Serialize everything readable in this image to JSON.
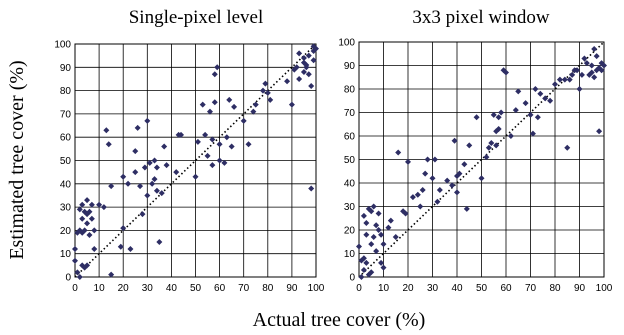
{
  "figure": {
    "ylabel": "Estimated tree cover (%)",
    "xlabel": "Actual tree cover (%)"
  },
  "chart_data": [
    {
      "type": "scatter",
      "title": "Single-pixel level",
      "xlabel": "Actual tree cover (%)",
      "ylabel": "Estimated tree cover (%)",
      "xlim": [
        0,
        100
      ],
      "ylim": [
        0,
        100
      ],
      "xticks": [
        "0",
        "10",
        "20",
        "30",
        "40",
        "50",
        "60",
        "70",
        "80",
        "90",
        "100"
      ],
      "yticks": [
        "0",
        "10",
        "20",
        "30",
        "40",
        "50",
        "60",
        "70",
        "80",
        "90",
        "100"
      ],
      "grid": true,
      "reference_line": "y = x (dotted)",
      "marker_color": "#2e2e64",
      "series": [
        {
          "x": [
            0,
            0,
            1,
            1,
            2,
            2,
            2,
            3,
            3,
            3,
            3,
            4,
            4,
            4,
            5,
            5,
            5,
            5,
            6,
            6,
            7,
            7,
            8,
            8,
            10,
            12,
            13,
            14,
            15,
            15,
            19,
            20,
            20,
            22,
            23,
            25,
            25,
            26,
            27,
            28,
            29,
            30,
            30,
            31,
            32,
            33,
            33,
            34,
            34,
            35,
            36,
            37,
            38,
            42,
            43,
            44,
            50,
            51,
            53,
            54,
            55,
            56,
            57,
            57,
            58,
            58,
            59,
            60,
            60,
            62,
            63,
            64,
            65,
            66,
            70,
            72,
            74,
            75,
            78,
            79,
            80,
            81,
            88,
            90,
            91,
            92,
            93,
            93,
            95,
            95,
            95,
            96,
            96,
            97,
            97,
            98,
            98,
            99,
            99,
            99,
            100
          ],
          "y": [
            7,
            12,
            2,
            19,
            0,
            20,
            29,
            19,
            25,
            31,
            5,
            20,
            28,
            4,
            23,
            27,
            33,
            5,
            18,
            28,
            25,
            31,
            12,
            20,
            31,
            30,
            63,
            57,
            1,
            39,
            13,
            21,
            43,
            40,
            12,
            45,
            54,
            64,
            39,
            27,
            47,
            35,
            67,
            49,
            40,
            42,
            50,
            37,
            47,
            15,
            36,
            56,
            48,
            45,
            61,
            61,
            43,
            58,
            74,
            61,
            52,
            71,
            48,
            59,
            75,
            87,
            90,
            50,
            57,
            49,
            60,
            76,
            56,
            73,
            67,
            57,
            71,
            74,
            80,
            83,
            79,
            76,
            84,
            74,
            89,
            90,
            85,
            96,
            88,
            92,
            94,
            90,
            91,
            87,
            95,
            82,
            38,
            93,
            97,
            99,
            98
          ]
        }
      ]
    },
    {
      "type": "scatter",
      "title": "3x3 pixel window",
      "xlabel": "Actual tree cover (%)",
      "ylabel": "Estimated tree cover (%)",
      "xlim": [
        0,
        100
      ],
      "ylim": [
        0,
        100
      ],
      "xticks": [
        "0",
        "10",
        "20",
        "30",
        "40",
        "50",
        "60",
        "70",
        "80",
        "90",
        "100"
      ],
      "yticks": [
        "0",
        "10",
        "20",
        "30",
        "40",
        "50",
        "60",
        "70",
        "80",
        "90",
        "100"
      ],
      "grid": true,
      "reference_line": "y = x (dotted)",
      "marker_color": "#2e2e64",
      "series": [
        {
          "x": [
            0,
            1,
            1,
            2,
            2,
            2,
            3,
            3,
            3,
            4,
            4,
            5,
            5,
            5,
            6,
            6,
            7,
            7,
            8,
            8,
            9,
            9,
            10,
            10,
            12,
            13,
            15,
            16,
            18,
            19,
            20,
            22,
            24,
            25,
            26,
            27,
            28,
            30,
            31,
            32,
            33,
            36,
            38,
            39,
            40,
            40,
            41,
            43,
            44,
            45,
            48,
            50,
            52,
            53,
            54,
            55,
            56,
            56,
            57,
            57,
            58,
            59,
            60,
            62,
            64,
            65,
            68,
            70,
            71,
            72,
            73,
            74,
            76,
            78,
            80,
            82,
            84,
            85,
            86,
            87,
            88,
            89,
            90,
            91,
            92,
            93,
            94,
            95,
            95,
            96,
            96,
            97,
            97,
            98,
            98,
            99,
            99,
            100
          ],
          "y": [
            13,
            7,
            0,
            26,
            8,
            3,
            23,
            18,
            6,
            29,
            1,
            28,
            14,
            2,
            30,
            17,
            22,
            11,
            27,
            20,
            18,
            6,
            14,
            4,
            21,
            24,
            17,
            53,
            28,
            27,
            49,
            34,
            35,
            30,
            37,
            44,
            50,
            42,
            50,
            32,
            37,
            41,
            39,
            58,
            36,
            43,
            44,
            48,
            29,
            56,
            68,
            42,
            51,
            55,
            57,
            69,
            56,
            62,
            63,
            68,
            70,
            88,
            87,
            60,
            71,
            79,
            74,
            69,
            61,
            80,
            68,
            78,
            76,
            75,
            82,
            84,
            84,
            55,
            84,
            86,
            88,
            88,
            80,
            86,
            93,
            91,
            86,
            87,
            90,
            85,
            97,
            88,
            94,
            89,
            62,
            91,
            88,
            90
          ]
        }
      ]
    }
  ]
}
